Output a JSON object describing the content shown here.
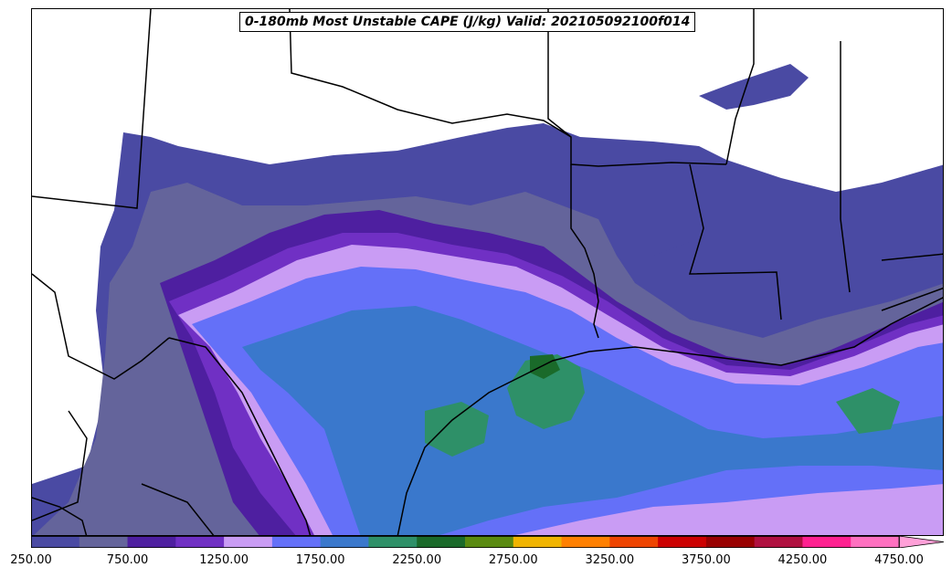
{
  "title": "0-180mb Most Unstable CAPE (J/kg) Valid: 202105092100f014",
  "colorbar": {
    "colors": [
      "#4a4aa3",
      "#64649b",
      "#4e1fa0",
      "#7030c4",
      "#c99cf4",
      "#6470f8",
      "#3a78cc",
      "#2e9068",
      "#1a6a2a",
      "#5a8a10",
      "#f0b400",
      "#ff8000",
      "#ee4400",
      "#cc0000",
      "#990000",
      "#b01040",
      "#ff2090",
      "#ff70c0"
    ],
    "extend_color": "#ffa0d8",
    "ticks": [
      {
        "label": "250.00"
      },
      {
        "label": "750.00"
      },
      {
        "label": "1250.00"
      },
      {
        "label": "1750.00"
      },
      {
        "label": "2250.00"
      },
      {
        "label": "2750.00"
      },
      {
        "label": "3250.00"
      },
      {
        "label": "3750.00"
      },
      {
        "label": "4250.00"
      },
      {
        "label": "4750.00"
      }
    ]
  },
  "fill_colors": {
    "band_250": "#4a4aa3",
    "band_500": "#64649b",
    "band_750": "#4e1fa0",
    "band_1000": "#7030c4",
    "band_1250": "#c99cf4",
    "band_1500": "#6470f8",
    "band_1750": "#3a78cc",
    "band_2000": "#2e9068",
    "band_2250": "#1a6a2a"
  }
}
